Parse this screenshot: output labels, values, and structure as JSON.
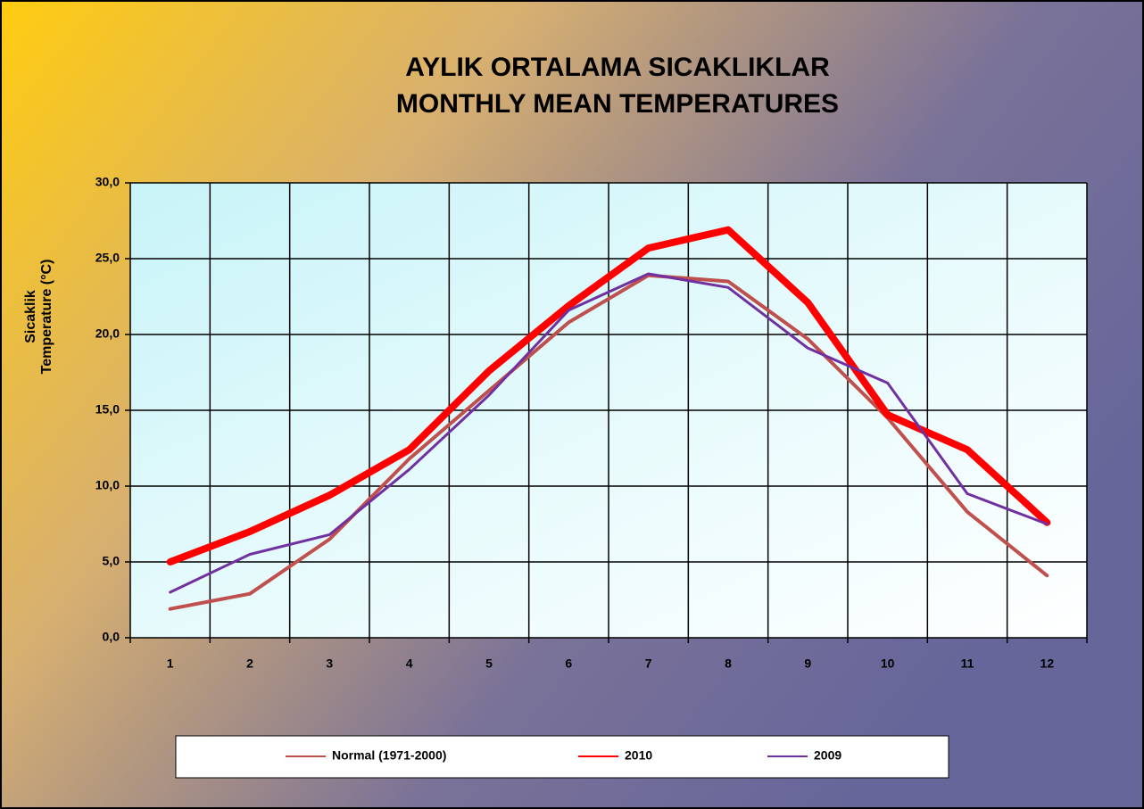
{
  "chart_data": {
    "type": "line",
    "title": [
      "AYLIK ORTALAMA SICAKLIKLAR",
      "MONTHLY MEAN TEMPERATURES"
    ],
    "y_label": [
      "Sicaklik",
      "Temperature (°C)"
    ],
    "categories": [
      "1",
      "2",
      "3",
      "4",
      "5",
      "6",
      "7",
      "8",
      "9",
      "10",
      "11",
      "12"
    ],
    "series": [
      {
        "name": "Normal (1971-2000)",
        "color": "#c0504d",
        "values": [
          1.9,
          2.9,
          6.5,
          11.8,
          16.3,
          20.8,
          23.9,
          23.5,
          19.7,
          14.5,
          8.3,
          4.1
        ]
      },
      {
        "name": "2010",
        "color": "#ff0000",
        "values": [
          5.0,
          7.0,
          9.4,
          12.4,
          17.6,
          21.9,
          25.7,
          26.9,
          22.1,
          14.7,
          12.4,
          7.6
        ]
      },
      {
        "name": "2009",
        "color": "#7030a0",
        "values": [
          3.0,
          5.5,
          6.8,
          11.1,
          16.0,
          21.6,
          24.0,
          23.1,
          19.1,
          16.8,
          9.5,
          7.5
        ]
      }
    ],
    "ylim": [
      0,
      30
    ],
    "yticks": [
      {
        "value": 0,
        "label": "0,0"
      },
      {
        "value": 5,
        "label": "5,0"
      },
      {
        "value": 10,
        "label": "10,0"
      },
      {
        "value": 15,
        "label": "15,0"
      },
      {
        "value": 20,
        "label": "20,0"
      },
      {
        "value": 25,
        "label": "25,0"
      },
      {
        "value": 30,
        "label": "30,0"
      }
    ],
    "grid": true,
    "legend": "bottom"
  }
}
